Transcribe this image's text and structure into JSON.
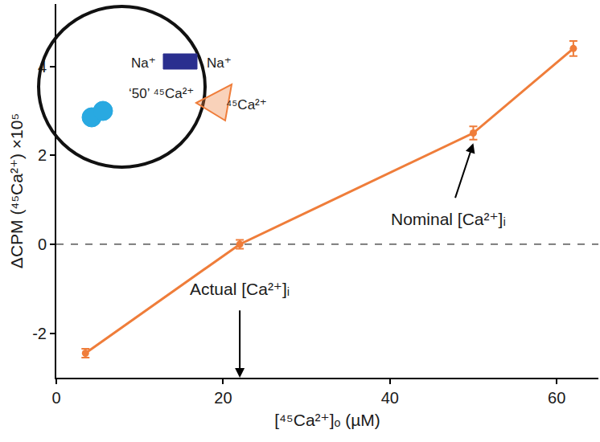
{
  "chart_data": {
    "type": "line",
    "x_label": "[⁴⁵Ca²⁺]ₒ (µM)",
    "y_label": "ΔCPM (⁴⁵Ca²⁺) ×10⁵",
    "x": [
      3.5,
      22,
      50,
      62
    ],
    "values": [
      -2.45,
      0,
      2.5,
      4.4
    ],
    "error": [
      0.1,
      0.1,
      0.15,
      0.17
    ],
    "color": "#ef7d3a",
    "marker": "circle",
    "line_style": "solid",
    "xlim": [
      0,
      65
    ],
    "ylim": [
      -3,
      5.4
    ],
    "xticks": [
      0,
      20,
      40,
      60
    ],
    "yticks": [
      -2,
      0,
      2,
      4
    ],
    "grid": false,
    "reference_line": {
      "value": 0,
      "line_style": "dashed"
    },
    "annotations": [
      {
        "text": "Actual [Ca²⁺]ᵢ",
        "x": 22
      },
      {
        "text": "Nominal [Ca²⁺]ᵢ",
        "x": 50
      }
    ],
    "inset": {
      "labels": [
        "Na⁺",
        "Na⁺",
        "‘50’ ⁴⁵Ca²⁺",
        "⁴⁵Ca²⁺"
      ]
    }
  }
}
